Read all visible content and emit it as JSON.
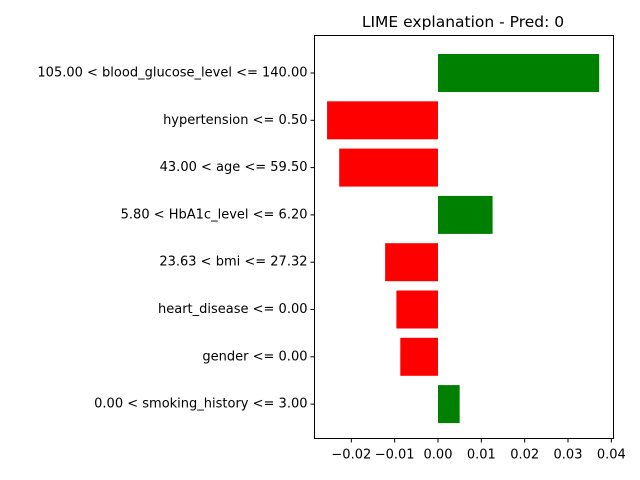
{
  "chart_data": {
    "type": "bar",
    "orientation": "horizontal",
    "title": "LIME explanation - Pred: 0",
    "xlabel": "",
    "ylabel": "",
    "xlim": [
      -0.0285,
      0.0405
    ],
    "xticks": [
      -0.02,
      -0.01,
      0.0,
      0.01,
      0.02,
      0.03,
      0.04
    ],
    "xtick_labels": [
      "−0.02",
      "−0.01",
      "0.00",
      "0.01",
      "0.02",
      "0.03",
      "0.04"
    ],
    "grid": false,
    "legend": "none",
    "positive_color": "#008000",
    "negative_color": "#ff0000",
    "categories": [
      "105.00 < blood_glucose_level <= 140.00",
      "hypertension <= 0.50",
      "43.00 < age <= 59.50",
      "5.80 < HbA1c_level <= 6.20",
      "23.63 < bmi <= 27.32",
      "heart_disease <= 0.00",
      "gender <= 0.00",
      "0.00 < smoking_history <= 3.00"
    ],
    "values": [
      0.0372,
      -0.0256,
      -0.0228,
      0.0126,
      -0.0122,
      -0.0096,
      -0.0087,
      0.005
    ]
  }
}
